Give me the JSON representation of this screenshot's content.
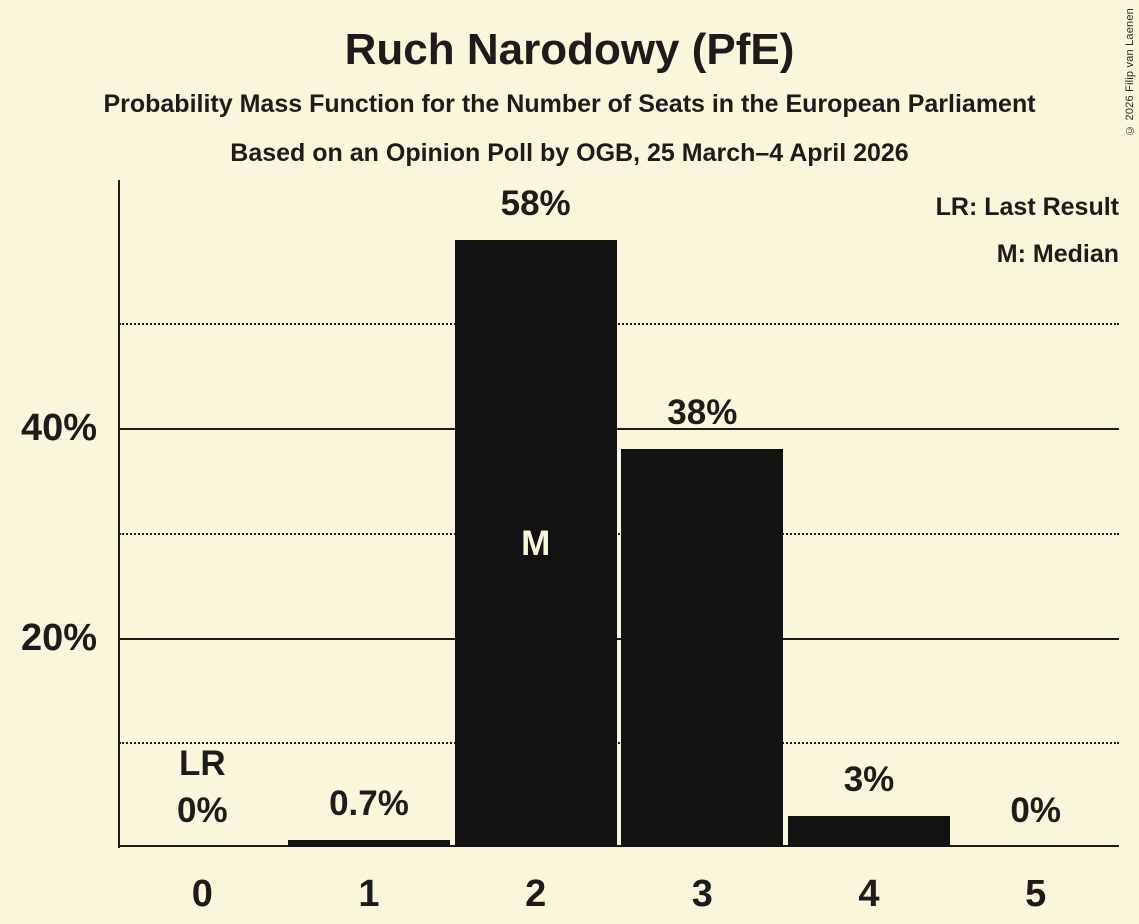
{
  "title": "Ruch Narodowy (PfE)",
  "subtitle": "Probability Mass Function for the Number of Seats in the European Parliament",
  "sub_subtitle": "Based on an Opinion Poll by OGB, 25 March–4 April 2026",
  "copyright": "© 2026 Filip van Laenen",
  "legend": {
    "lr": "LR: Last Result",
    "m": "M: Median"
  },
  "colors": {
    "background": "#faf6dc",
    "bar": "#121212",
    "text": "#1c1c1a",
    "median_label": "#faf6dc"
  },
  "chart_data": {
    "type": "bar",
    "title": "Ruch Narodowy (PfE)",
    "categories": [
      "0",
      "1",
      "2",
      "3",
      "4",
      "5"
    ],
    "values": [
      0,
      0.7,
      58,
      38,
      3,
      0
    ],
    "bar_labels": [
      "0%",
      "0.7%",
      "58%",
      "38%",
      "3%",
      "0%"
    ],
    "ylim": [
      0,
      63.7
    ],
    "yticks": [
      {
        "percent": 10,
        "style": "dotted",
        "label": ""
      },
      {
        "percent": 20,
        "style": "solid",
        "label": "20%"
      },
      {
        "percent": 30,
        "style": "dotted",
        "label": ""
      },
      {
        "percent": 40,
        "style": "solid",
        "label": "40%"
      },
      {
        "percent": 50,
        "style": "dotted",
        "label": ""
      }
    ],
    "grid": "horizontal",
    "legend_position": "top-right",
    "annotations": {
      "last_result_seat": 0,
      "last_result_label": "LR",
      "median_seat": 2,
      "median_label": "M"
    }
  }
}
